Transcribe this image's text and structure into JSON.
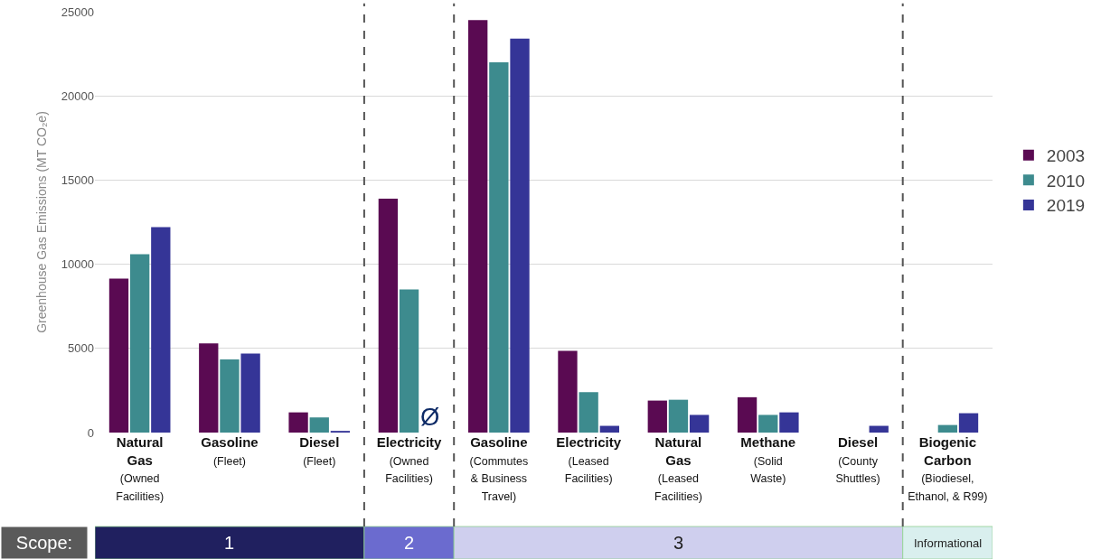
{
  "chart_data": {
    "type": "bar",
    "ylabel": "Greenhouse Gas Emissions (MT CO₂e)",
    "categories": [
      "Natural\nGas\n(Owned\nFacilities)",
      "Gasoline\n(Fleet)",
      "Diesel\n(Fleet)",
      "Electricity\n(Owned\nFacilities)",
      "Gasoline\n(Commutes\n& Business\nTravel)",
      "Electricity\n(Leased\nFacilities)",
      "Natural\nGas\n(Leased\nFacilities)",
      "Methane\n(Solid\nWaste)",
      "Diesel\n(County\nShuttles)",
      "Biogenic\nCarbon\n(Biodiesel,\nEthanol, & R99)"
    ],
    "series": [
      {
        "name": "2003",
        "color": "#5a0a52",
        "values": [
          9150,
          5300,
          1200,
          13900,
          24500,
          4850,
          1900,
          2100,
          null,
          null
        ]
      },
      {
        "name": "2010",
        "color": "#3d8b8e",
        "values": [
          10600,
          4350,
          900,
          8500,
          22000,
          2400,
          1950,
          1050,
          null,
          450
        ]
      },
      {
        "name": "2019",
        "color": "#353597",
        "values": [
          12200,
          4700,
          100,
          null,
          23400,
          400,
          1050,
          1200,
          400,
          1150
        ],
        "value_labels": [
          null,
          null,
          null,
          "Ø",
          null,
          null,
          null,
          null,
          null,
          null
        ]
      }
    ],
    "ylim": [
      0,
      25000
    ],
    "yticks": [
      0,
      5000,
      10000,
      15000,
      20000,
      25000
    ],
    "grid": "y",
    "legend": "right",
    "annotations": [
      "Scope:",
      "1",
      "2",
      "3",
      "Informational"
    ]
  }
}
